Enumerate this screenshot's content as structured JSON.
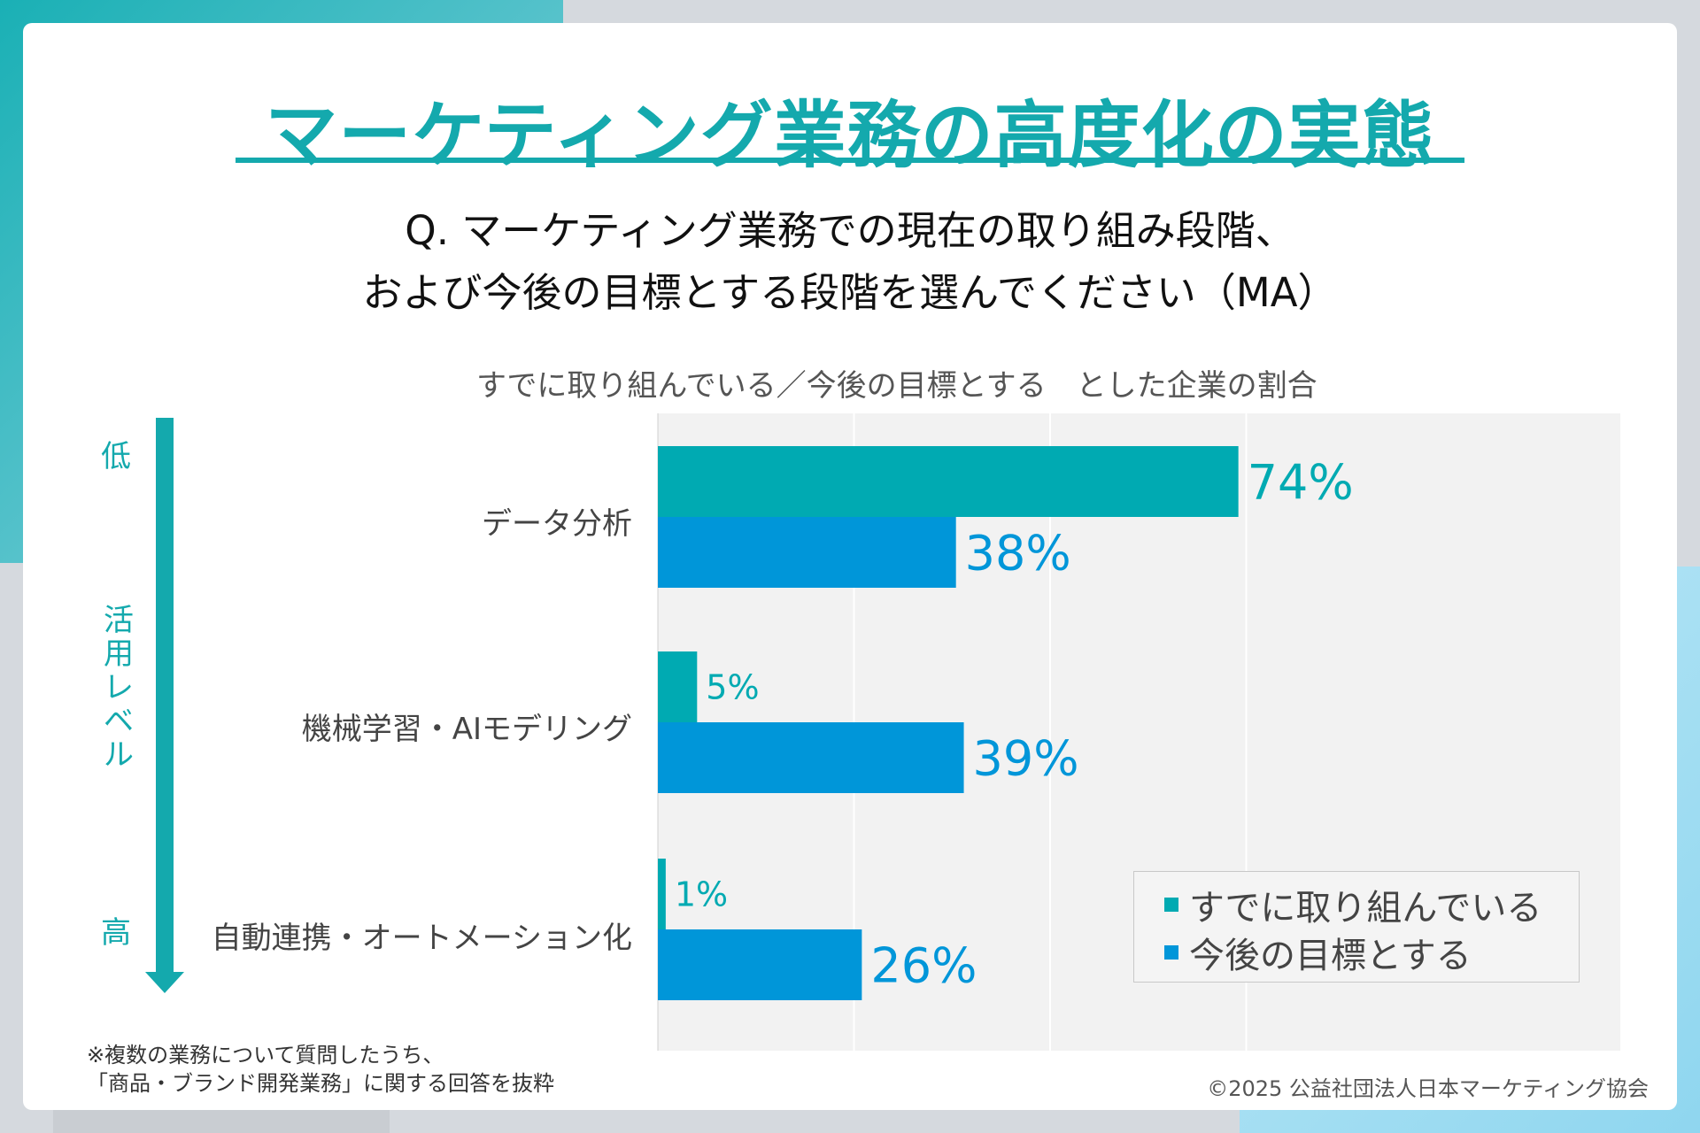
{
  "title": "マーケティング業務の高度化の実態",
  "question": {
    "line1": "Q. マーケティング業務での現在の取り組み段階、",
    "line2": "および今後の目標とする段階を選んでください（MA）"
  },
  "subtitle": "すでに取り組んでいる／今後の目標とする　とした企業の割合",
  "level_axis": {
    "low": "低",
    "label": "活用レベル",
    "high": "高"
  },
  "colors": {
    "current": "#00aab2",
    "target": "#0096d9",
    "accent": "#14a9ad",
    "plot_bg": "#f2f2f2"
  },
  "chart_data": {
    "type": "bar",
    "orientation": "horizontal",
    "categories": [
      "データ分析",
      "機械学習・AIモデリング",
      "自動連携・オートメーション化"
    ],
    "series": [
      {
        "name": "すでに取り組んでいる",
        "values": [
          74,
          5,
          1
        ],
        "labels": [
          "74%",
          "5%",
          "1%"
        ]
      },
      {
        "name": "今後の目標とする",
        "values": [
          38,
          39,
          26
        ],
        "labels": [
          "38%",
          "39%",
          "26%"
        ]
      }
    ],
    "xlim": [
      0,
      100
    ],
    "grid": true,
    "legend": "bottom-right"
  },
  "legend": {
    "current": "すでに取り組んでいる",
    "target": "今後の目標とする"
  },
  "footnote": {
    "line1": "※複数の業務について質問したうち、",
    "line2": "「商品・ブランド開発業務」に関する回答を抜粋"
  },
  "copyright": "©2025 公益社団法人日本マーケティング協会"
}
